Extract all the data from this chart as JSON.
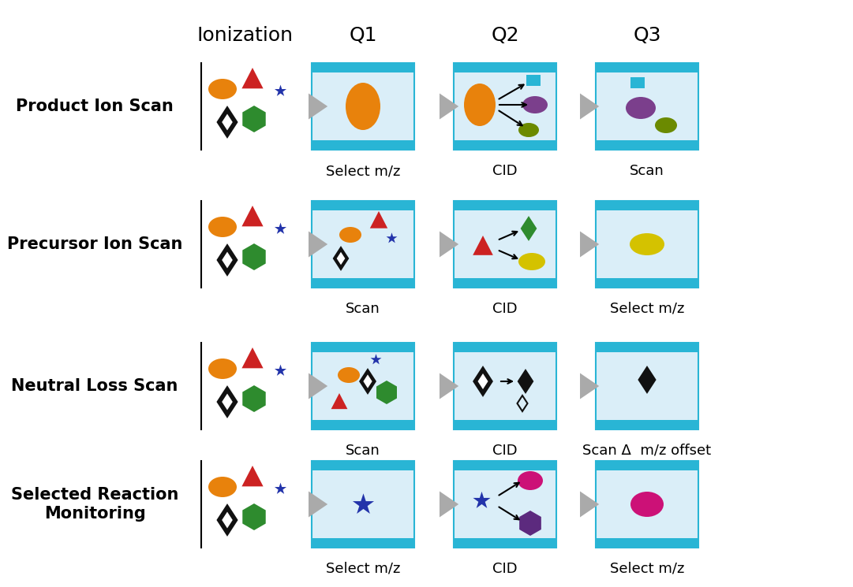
{
  "bg_color": "#ffffff",
  "box_bg": "#daeef8",
  "box_border_color": "#29b5d5",
  "figsize": [
    10.81,
    7.45
  ],
  "dpi": 100,
  "row_labels": [
    "Product Ion Scan",
    "Precursor Ion Scan",
    "Neutral Loss Scan",
    "Selected Reaction\nMonitoring"
  ],
  "col_headers": [
    "Ionization",
    "Q1",
    "Q2",
    "Q3"
  ],
  "sublabels": [
    [
      "Select m/z",
      "CID",
      "Scan"
    ],
    [
      "Scan",
      "CID",
      "Select m/z"
    ],
    [
      "Scan",
      "CID",
      "Scan Δ  m/z offset"
    ],
    [
      "Select m/z",
      "CID",
      "Select m/z"
    ]
  ],
  "orange": "#e8820c",
  "red": "#cc2222",
  "green": "#2e8b2e",
  "blue_star": "#2233aa",
  "black": "#111111",
  "purple": "#7b3f8c",
  "olive": "#6b8a00",
  "cyan": "#29b5d5",
  "yellow": "#d4c200",
  "magenta": "#cc1177",
  "dark_purple": "#5c2a7e",
  "arrow_gray": "#aaaaaa",
  "label_fontsize": 15,
  "header_fontsize": 18,
  "sublabel_fontsize": 13
}
